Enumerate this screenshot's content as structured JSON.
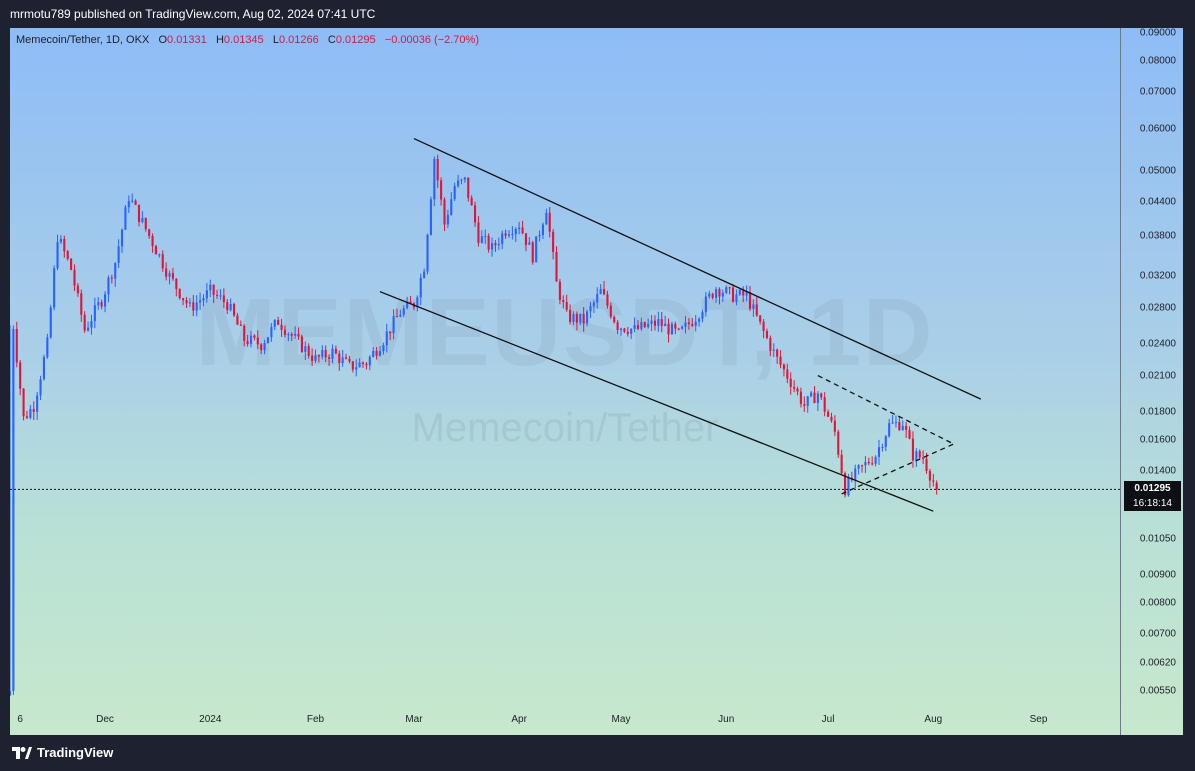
{
  "header": {
    "publish_line": "mrmotu789 published on TradingView.com, Aug 02, 2024 07:41 UTC"
  },
  "legend": {
    "symbol": "Memecoin/Tether, 1D, OKX",
    "open_label": "O",
    "open": "0.01331",
    "high_label": "H",
    "high": "0.01345",
    "low_label": "L",
    "low": "0.01266",
    "close_label": "C",
    "close": "0.01295",
    "change": "−0.00036 (−2.70%)"
  },
  "watermark": {
    "ticker": "MEMEUSDT, 1D",
    "description": "Memecoin/Tether"
  },
  "price_axis": {
    "current_price": "0.01295",
    "countdown": "16:18:14"
  },
  "footer": {
    "brand": "TradingView"
  },
  "colors": {
    "up": "#2962ff",
    "down": "#e0153a",
    "channel": "#111111",
    "price_line": "#111111",
    "background_top": "#8ebcf6",
    "background_bottom": "#c7e8cc"
  },
  "chart_data": {
    "type": "candlestick",
    "symbol": "MEMEUSDT",
    "exchange": "OKX",
    "interval": "1D",
    "y_scale": "log",
    "ylim": [
      0.0052,
      0.092
    ],
    "y_ticks": [
      "0.09000",
      "0.08000",
      "0.07000",
      "0.06000",
      "0.05000",
      "0.04400",
      "0.03800",
      "0.03200",
      "0.02800",
      "0.02400",
      "0.02100",
      "0.01800",
      "0.01600",
      "0.01400",
      "0.01050",
      "0.00900",
      "0.00800",
      "0.00700",
      "0.00620",
      "0.00550"
    ],
    "x_ticks": [
      {
        "label": "6",
        "date": "2023-11-06"
      },
      {
        "label": "Dec",
        "date": "2023-12-01"
      },
      {
        "label": "2024",
        "date": "2024-01-01"
      },
      {
        "label": "Feb",
        "date": "2024-02-01"
      },
      {
        "label": "Mar",
        "date": "2024-03-01"
      },
      {
        "label": "Apr",
        "date": "2024-04-01"
      },
      {
        "label": "May",
        "date": "2024-05-01"
      },
      {
        "label": "Jun",
        "date": "2024-06-01"
      },
      {
        "label": "Jul",
        "date": "2024-07-01"
      },
      {
        "label": "Aug",
        "date": "2024-08-01"
      },
      {
        "label": "Sep",
        "date": "2024-09-01"
      }
    ],
    "x_range": [
      "2023-11-03",
      "2024-09-25"
    ],
    "price_path": [
      [
        "2023-11-03",
        0.0055
      ],
      [
        "2023-11-04",
        0.026
      ],
      [
        "2023-11-07",
        0.0175
      ],
      [
        "2023-11-10",
        0.0185
      ],
      [
        "2023-11-14",
        0.024
      ],
      [
        "2023-11-17",
        0.038
      ],
      [
        "2023-11-21",
        0.033
      ],
      [
        "2023-11-25",
        0.0255
      ],
      [
        "2023-11-30",
        0.029
      ],
      [
        "2023-12-04",
        0.034
      ],
      [
        "2023-12-08",
        0.045
      ],
      [
        "2023-12-15",
        0.037
      ],
      [
        "2023-12-20",
        0.032
      ],
      [
        "2023-12-26",
        0.028
      ],
      [
        "2024-01-01",
        0.03
      ],
      [
        "2024-01-06",
        0.0285
      ],
      [
        "2024-01-11",
        0.0245
      ],
      [
        "2024-01-16",
        0.024
      ],
      [
        "2024-01-21",
        0.0265
      ],
      [
        "2024-01-26",
        0.0245
      ],
      [
        "2024-02-01",
        0.0225
      ],
      [
        "2024-02-06",
        0.0232
      ],
      [
        "2024-02-11",
        0.0218
      ],
      [
        "2024-02-16",
        0.0222
      ],
      [
        "2024-02-21",
        0.0245
      ],
      [
        "2024-02-26",
        0.0275
      ],
      [
        "2024-03-01",
        0.0285
      ],
      [
        "2024-03-04",
        0.0335
      ],
      [
        "2024-03-07",
        0.053
      ],
      [
        "2024-03-10",
        0.04
      ],
      [
        "2024-03-13",
        0.047
      ],
      [
        "2024-03-16",
        0.048
      ],
      [
        "2024-03-20",
        0.038
      ],
      [
        "2024-03-24",
        0.036
      ],
      [
        "2024-03-28",
        0.039
      ],
      [
        "2024-04-01",
        0.04
      ],
      [
        "2024-04-05",
        0.035
      ],
      [
        "2024-04-09",
        0.043
      ],
      [
        "2024-04-12",
        0.031
      ],
      [
        "2024-04-15",
        0.027
      ],
      [
        "2024-04-20",
        0.0265
      ],
      [
        "2024-04-25",
        0.03
      ],
      [
        "2024-04-30",
        0.026
      ],
      [
        "2024-05-05",
        0.0255
      ],
      [
        "2024-05-12",
        0.0263
      ],
      [
        "2024-05-18",
        0.025
      ],
      [
        "2024-05-23",
        0.027
      ],
      [
        "2024-05-29",
        0.0305
      ],
      [
        "2024-06-03",
        0.0295
      ],
      [
        "2024-06-07",
        0.0295
      ],
      [
        "2024-06-11",
        0.026
      ],
      [
        "2024-06-16",
        0.0225
      ],
      [
        "2024-06-20",
        0.0205
      ],
      [
        "2024-06-24",
        0.0185
      ],
      [
        "2024-06-28",
        0.0195
      ],
      [
        "2024-07-03",
        0.0165
      ],
      [
        "2024-07-06",
        0.013
      ],
      [
        "2024-07-10",
        0.014
      ],
      [
        "2024-07-15",
        0.015
      ],
      [
        "2024-07-19",
        0.017
      ],
      [
        "2024-07-23",
        0.0172
      ],
      [
        "2024-07-26",
        0.015
      ],
      [
        "2024-07-29",
        0.0148
      ],
      [
        "2024-08-02",
        0.01295
      ]
    ],
    "last_candle": {
      "open": 0.01331,
      "high": 0.01345,
      "low": 0.01266,
      "close": 0.01295
    },
    "overlays": {
      "channel_upper": [
        [
          "2024-03-01",
          0.0575
        ],
        [
          "2024-08-15",
          0.019
        ]
      ],
      "channel_lower": [
        [
          "2024-02-20",
          0.03
        ],
        [
          "2024-08-01",
          0.0118
        ]
      ],
      "wedge_upper": [
        [
          "2024-06-28",
          0.021
        ],
        [
          "2024-08-07",
          0.0157
        ]
      ],
      "wedge_lower": [
        [
          "2024-07-05",
          0.0127
        ],
        [
          "2024-08-07",
          0.0157
        ]
      ]
    }
  }
}
